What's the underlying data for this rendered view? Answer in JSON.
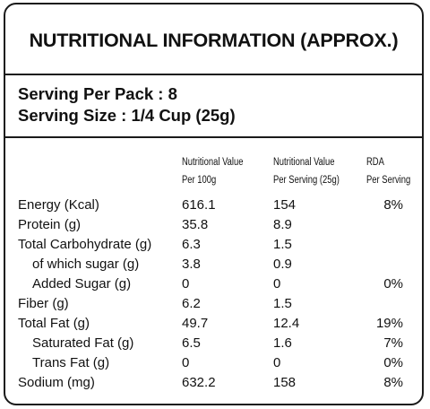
{
  "title": "NUTRITIONAL INFORMATION (APPROX.)",
  "serving": {
    "per_pack": "Serving Per Pack : 8",
    "size": "Serving Size : 1/4 Cup (25g)"
  },
  "columns": {
    "per100_line1": "Nutritional Value",
    "per100_line2": "Per 100g",
    "serving_line1": "Nutritional Value",
    "serving_line2": "Per Serving (25g)",
    "rda_line1": "RDA",
    "rda_line2": "Per Serving"
  },
  "rows": [
    {
      "label": "Energy  (Kcal)",
      "per100": "616.1",
      "serving": "154",
      "rda": "8%",
      "indent": false
    },
    {
      "label": "Protein (g)",
      "per100": "35.8",
      "serving": "8.9",
      "rda": "",
      "indent": false
    },
    {
      "label": "Total Carbohydrate (g)",
      "per100": "6.3",
      "serving": "1.5",
      "rda": "",
      "indent": false
    },
    {
      "label": "of which sugar (g)",
      "per100": "3.8",
      "serving": "0.9",
      "rda": "",
      "indent": true
    },
    {
      "label": "Added Sugar (g)",
      "per100": "0",
      "serving": "0",
      "rda": "0%",
      "indent": true
    },
    {
      "label": "Fiber (g)",
      "per100": "6.2",
      "serving": "1.5",
      "rda": "",
      "indent": false
    },
    {
      "label": "Total Fat (g)",
      "per100": "49.7",
      "serving": "12.4",
      "rda": "19%",
      "indent": false
    },
    {
      "label": "Saturated Fat (g)",
      "per100": "6.5",
      "serving": "1.6",
      "rda": "7%",
      "indent": true
    },
    {
      "label": "Trans Fat (g)",
      "per100": "0",
      "serving": "0",
      "rda": "0%",
      "indent": true
    },
    {
      "label": "Sodium (mg)",
      "per100": "632.2",
      "serving": "158",
      "rda": "8%",
      "indent": false
    }
  ]
}
